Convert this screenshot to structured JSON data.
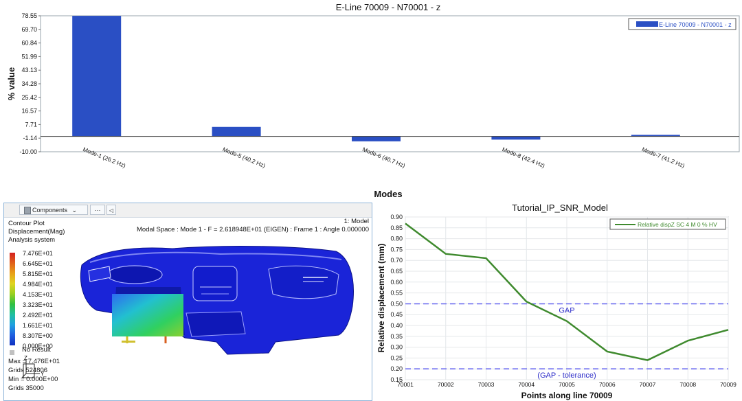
{
  "chart_data": [
    {
      "type": "bar",
      "title": "E-Line 70009 - N70001 - z",
      "xlabel": "Modes",
      "ylabel": "% value",
      "categories": [
        "Mode-1 (26.2 Hz)",
        "Mode-5 (40.2 Hz)",
        "Mode-6 (40.7 Hz)",
        "Mode-8 (42.4 Hz)",
        "Mode-7 (41.2 Hz)"
      ],
      "series": [
        {
          "name": "E-Line 70009 - N70001 - z",
          "values": [
            78.5,
            6.2,
            -3.2,
            -2.1,
            1.0
          ]
        }
      ],
      "ylim": [
        -10.0,
        78.55
      ],
      "yticks": [
        "78.55",
        "69.70",
        "60.84",
        "51.99",
        "43.13",
        "34.28",
        "25.42",
        "16.57",
        "7.71",
        "-1.14",
        "-10.00"
      ],
      "legend": "top-right",
      "color": "#2a4fc4"
    },
    {
      "type": "line",
      "title": "Tutorial_IP_SNR_Model",
      "xlabel": "Points along line 70009",
      "ylabel": "Relative displacement (mm)",
      "categories": [
        "70001",
        "70002",
        "70003",
        "70004",
        "70005",
        "70006",
        "70007",
        "70008",
        "70009"
      ],
      "series": [
        {
          "name": "Relative dispZ SC 4 M 0 % HV",
          "values": [
            0.87,
            0.73,
            0.71,
            0.51,
            0.42,
            0.28,
            0.24,
            0.33,
            0.38
          ]
        }
      ],
      "ylim": [
        0.15,
        0.9
      ],
      "yticks": [
        "0.90",
        "0.85",
        "0.80",
        "0.75",
        "0.70",
        "0.65",
        "0.60",
        "0.55",
        "0.50",
        "0.45",
        "0.40",
        "0.35",
        "0.30",
        "0.25",
        "0.20",
        "0.15"
      ],
      "reference_lines": [
        {
          "label": "GAP",
          "value": 0.5
        },
        {
          "label": "(GAP - tolerance)",
          "value": 0.2
        }
      ],
      "legend": "top-right",
      "color": "#3f8a2e",
      "ref_color": "#6d6df0"
    }
  ],
  "viewport": {
    "toolbar": {
      "components_label": "Components",
      "components_icon": "cube-icon",
      "more_label": "···",
      "collapse_label": "◁"
    },
    "model_label": "1: Model",
    "subcase_info": "Modal Space : Mode 1 - F = 2.618948E+01 (EIGEN) : Frame 1 : Angle 0.000000",
    "contour_title": "Contour Plot",
    "contour_subtitle": "Displacement(Mag)",
    "contour_system": "Analysis system",
    "legend_values": [
      "7.476E+01",
      "6.645E+01",
      "5.815E+01",
      "4.984E+01",
      "4.153E+01",
      "3.323E+01",
      "2.492E+01",
      "1.661E+01",
      "8.307E+00",
      "0.000E+00"
    ],
    "legend_colors": [
      "#d42020",
      "#e0601a",
      "#e8a018",
      "#e0d420",
      "#9ad020",
      "#30c040",
      "#20c0a0",
      "#20a0e0",
      "#2060e0",
      "#1030c0"
    ],
    "no_result": "No Result",
    "max_label": "Max = 7.476E+01",
    "max_grid": "Grids 524806",
    "min_label": "Min = 0.000E+00",
    "min_grid": "Grids 35000",
    "triad": {
      "z": "Z",
      "y": "Y"
    }
  }
}
